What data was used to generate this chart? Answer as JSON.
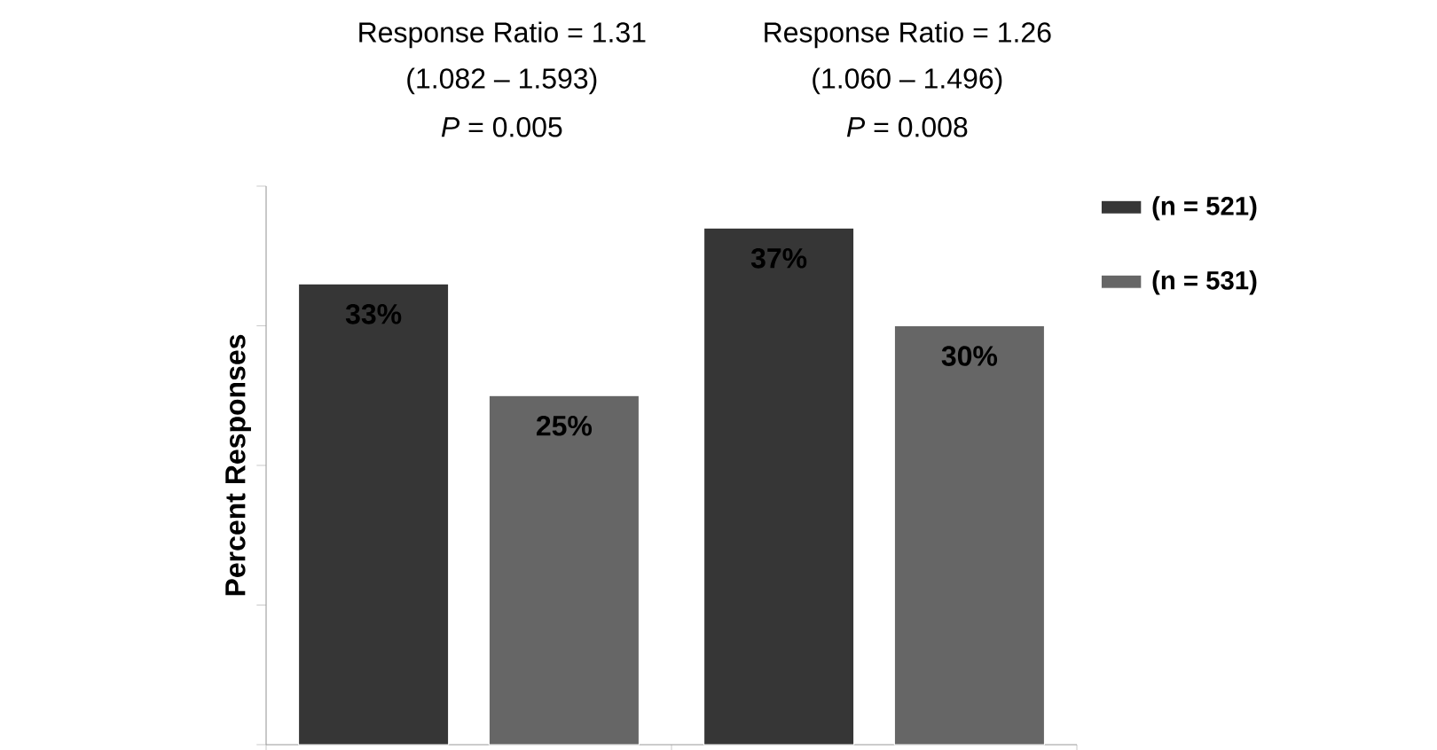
{
  "chart_data": {
    "type": "bar",
    "categories": [
      null,
      null
    ],
    "series": [
      {
        "name": "(n = 521)",
        "color": "#363636",
        "values": [
          33,
          37
        ],
        "value_labels": [
          "33%",
          "37%"
        ]
      },
      {
        "name": "(n = 531)",
        "color": "#666666",
        "values": [
          25,
          30
        ],
        "value_labels": [
          "25%",
          "30%"
        ]
      }
    ],
    "ylabel": "Percent Responses",
    "ylim": [
      0,
      40
    ],
    "yticks": [
      {
        "value": 0,
        "label": null
      },
      {
        "value": 10,
        "label": null
      },
      {
        "value": 20,
        "label": null
      },
      {
        "value": 30,
        "label": null
      },
      {
        "value": 40,
        "label": null
      }
    ],
    "grid": false,
    "legend": "top right",
    "annotations": [
      "Response Ratio = 1.31",
      "(1.082 – 1.593)",
      "*P* = 0.005",
      "Response Ratio = 1.26",
      "(1.060 – 1.496)",
      "*P* = 0.008"
    ]
  }
}
